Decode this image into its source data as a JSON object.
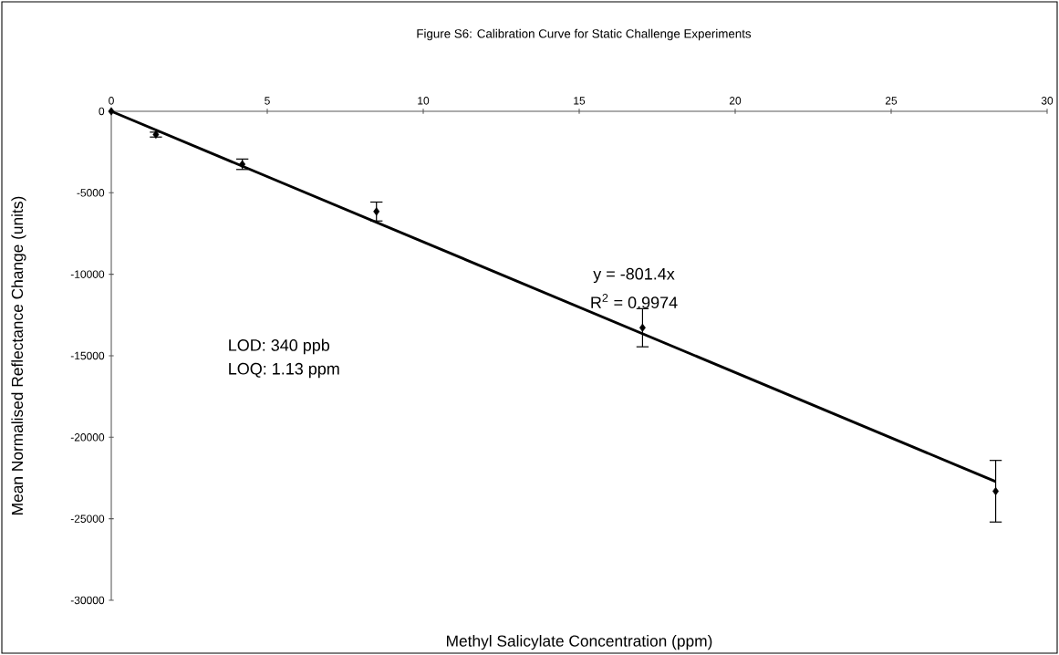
{
  "chart_data": {
    "type": "scatter",
    "title": "Figure S6: Calibration Curve for Static Challenge Experiments",
    "xlabel": "Methyl Salicylate Concentration (ppm)",
    "ylabel": "Mean Normalised Reflectance Change (units)",
    "xlim": [
      0,
      30
    ],
    "xticks": [
      0,
      5,
      10,
      15,
      20,
      25,
      30
    ],
    "ylim": [
      -30000,
      0
    ],
    "yticks": [
      0,
      -5000,
      -10000,
      -15000,
      -20000,
      -25000,
      -30000
    ],
    "marker": "diamond",
    "series": [
      {
        "color": "#000000",
        "x": [
          0,
          1.43,
          4.2,
          8.5,
          17.03,
          28.35
        ],
        "values": [
          0,
          -1430,
          -3250,
          -6150,
          -13280,
          -23310
        ],
        "errors": [
          null,
          150,
          320,
          580,
          1170,
          1890
        ]
      },
      {
        "type": "line",
        "marker": "none",
        "color": "#000000",
        "x": [
          0,
          28.35
        ],
        "values": [
          0,
          -22720
        ]
      }
    ],
    "annotations": [
      "y = -801.4x",
      "R$^{2}$ = 0.9974",
      "LOD: 340 ppb",
      "LOQ: 1.13 ppm"
    ]
  }
}
